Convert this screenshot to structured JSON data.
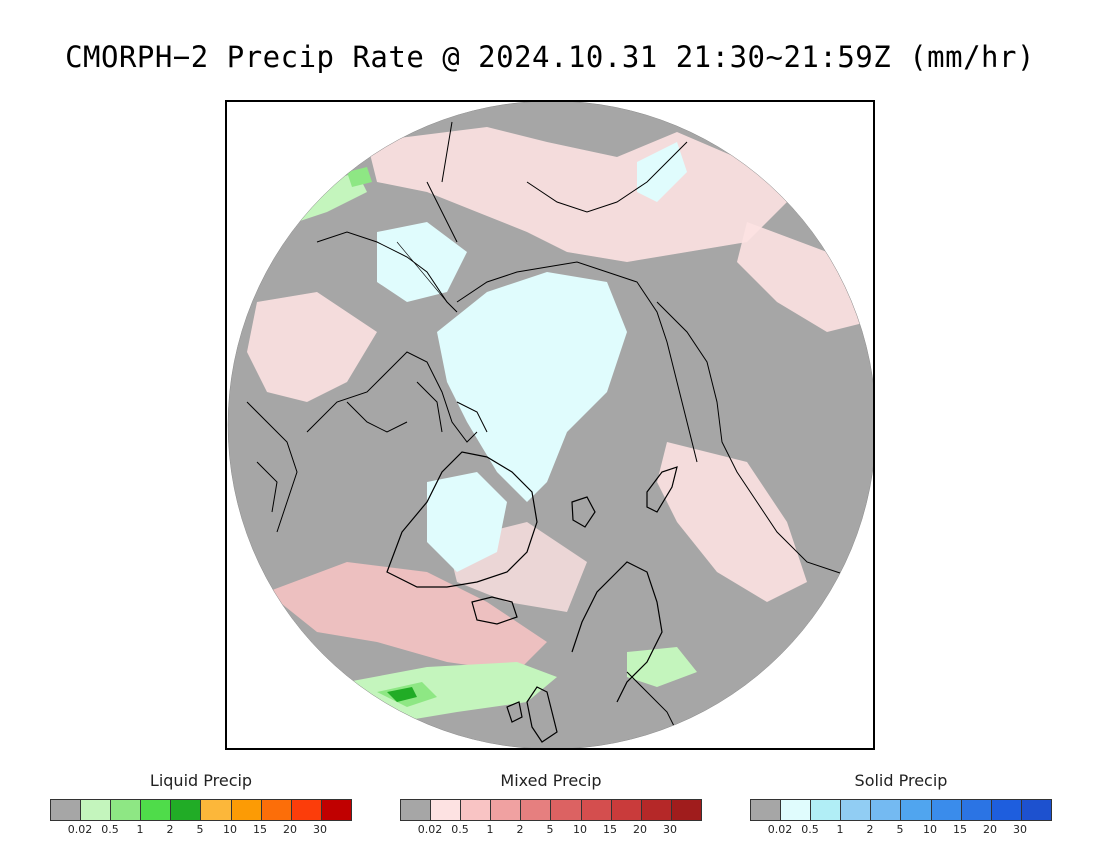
{
  "title": "CMORPH−2 Precip Rate @ 2024.10.31 21:30~21:59Z (mm/hr)",
  "map": {
    "projection": "north-polar-stereographic",
    "background_color": "#a6a6a6",
    "coastline_color": "#000000"
  },
  "legends": [
    {
      "title": "Liquid Precip",
      "colors": [
        "#a6a6a6",
        "#c4f5bd",
        "#8ee784",
        "#4fdc4a",
        "#21ac26",
        "#fcb73a",
        "#fc9b05",
        "#fc6e09",
        "#fc3d0a",
        "#c00000"
      ],
      "ticks": [
        "0.02",
        "0.5",
        "1",
        "2",
        "5",
        "10",
        "15",
        "20",
        "30"
      ]
    },
    {
      "title": "Mixed Precip",
      "colors": [
        "#a6a6a6",
        "#fde2e2",
        "#f9c4c4",
        "#f0a1a1",
        "#e67f7f",
        "#dc6262",
        "#d44e4e",
        "#c93b3b",
        "#b52828",
        "#a01c1c"
      ],
      "ticks": [
        "0.02",
        "0.5",
        "1",
        "2",
        "5",
        "10",
        "15",
        "20",
        "30"
      ]
    },
    {
      "title": "Solid Precip",
      "colors": [
        "#a6a6a6",
        "#e0fcfd",
        "#b1eef6",
        "#91cdf3",
        "#74baf2",
        "#50a5ef",
        "#3a8ceb",
        "#2b74e4",
        "#1e5ede",
        "#1d51cf"
      ],
      "ticks": [
        "0.02",
        "0.5",
        "1",
        "2",
        "5",
        "10",
        "15",
        "20",
        "30"
      ]
    }
  ]
}
